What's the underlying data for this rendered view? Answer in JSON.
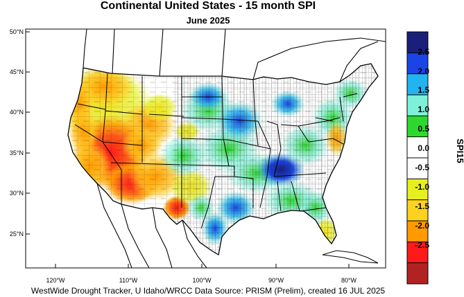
{
  "title": "Continental United States - 15 month SPI",
  "subtitle": "June 2025",
  "footer": "WestWide Drought Tracker, U Idaho/WRCC Data Source: PRISM (Prelim), created 16 JUL 2025",
  "map": {
    "lat_ticks": [
      "50°N",
      "45°N",
      "40°N",
      "35°N",
      "30°N",
      "25°N"
    ],
    "lon_ticks": [
      "120°W",
      "110°W",
      "100°W",
      "90°W",
      "80°W"
    ]
  },
  "colorbar": {
    "title": "SPI15",
    "labels": [
      "2.5",
      "2.0",
      "1.5",
      "1.0",
      "0.5",
      "0.0",
      "-0.5",
      "-1.0",
      "-1.5",
      "-2.0",
      "-2.5"
    ],
    "colors": [
      "#1a1f7a",
      "#1a44e6",
      "#22b4f0",
      "#7ff0d8",
      "#2fd82f",
      "#ffffff",
      "#ffffff",
      "#e6f020",
      "#ffd21e",
      "#ff9a00",
      "#ff1a1a",
      "#b22222"
    ]
  }
}
